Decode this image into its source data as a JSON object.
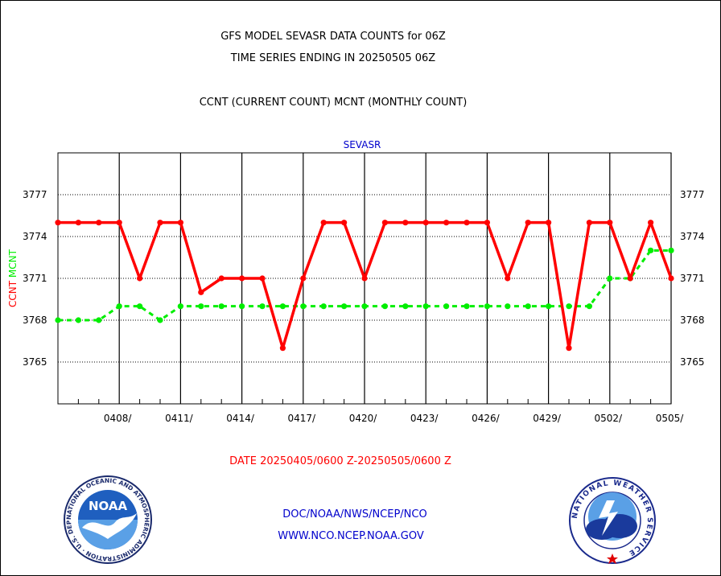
{
  "titles": {
    "line1": "GFS MODEL SEVASR DATA COUNTS for 06Z",
    "line2": "TIME SERIES ENDING IN 20250505 06Z",
    "line3": "CCNT (CURRENT COUNT) MCNT (MONTHLY COUNT)"
  },
  "footer": {
    "date_range": "DATE 20250405/0600 Z-20250505/0600 Z",
    "link1": "DOC/NOAA/NWS/NCEP/NCO",
    "link2": "WWW.NCO.NCEP.NOAA.GOV"
  },
  "logos": {
    "noaa_text": "NOAA",
    "noaa_ring": "NATIONAL OCEANIC AND ATMOSPHERIC ADMINISTRATION · U.S. DEPARTMENT OF COMMERCE ·",
    "nws_ring": "NATIONAL WEATHER SERVICE"
  },
  "colors": {
    "ccnt": "#ff0000",
    "mcnt": "#00ee00",
    "panel_label": "#0000cc",
    "footer_red": "#ff0000",
    "footer_blue": "#0000cc"
  },
  "chart_data": {
    "type": "line",
    "panel_label": "SEVASR",
    "ylabel_ccnt": "CCNT",
    "ylabel_mcnt": "MCNT",
    "ylim": [
      3762,
      3780
    ],
    "yticks": [
      3765,
      3768,
      3771,
      3774,
      3777
    ],
    "xlim": [
      0,
      30
    ],
    "x_tick_positions": [
      3,
      6,
      9,
      12,
      15,
      18,
      21,
      24,
      27,
      30
    ],
    "x_tick_labels": [
      "0408/",
      "0411/",
      "0414/",
      "0417/",
      "0420/",
      "0423/",
      "0426/",
      "0429/",
      "0502/",
      "0505/"
    ],
    "grid": true,
    "x": [
      0,
      1,
      2,
      3,
      4,
      5,
      6,
      7,
      8,
      9,
      10,
      11,
      12,
      13,
      14,
      15,
      16,
      17,
      18,
      19,
      20,
      21,
      22,
      23,
      24,
      25,
      26,
      27,
      28,
      29,
      30
    ],
    "series": [
      {
        "name": "CCNT",
        "color": "#ff0000",
        "style": "solid",
        "values": [
          3775,
          3775,
          3775,
          3775,
          3771,
          3775,
          3775,
          3770,
          3771,
          3771,
          3771,
          3766,
          3771,
          3775,
          3775,
          3771,
          3775,
          3775,
          3775,
          3775,
          3775,
          3775,
          3771,
          3775,
          3775,
          3766,
          3775,
          3775,
          3771,
          3775,
          3771
        ]
      },
      {
        "name": "MCNT",
        "color": "#00ee00",
        "style": "dashed",
        "values": [
          3768,
          3768,
          3768,
          3769,
          3769,
          3768,
          3769,
          3769,
          3769,
          3769,
          3769,
          3769,
          3769,
          3769,
          3769,
          3769,
          3769,
          3769,
          3769,
          3769,
          3769,
          3769,
          3769,
          3769,
          3769,
          3769,
          3769,
          3771,
          3771,
          3773,
          3773
        ]
      }
    ]
  }
}
